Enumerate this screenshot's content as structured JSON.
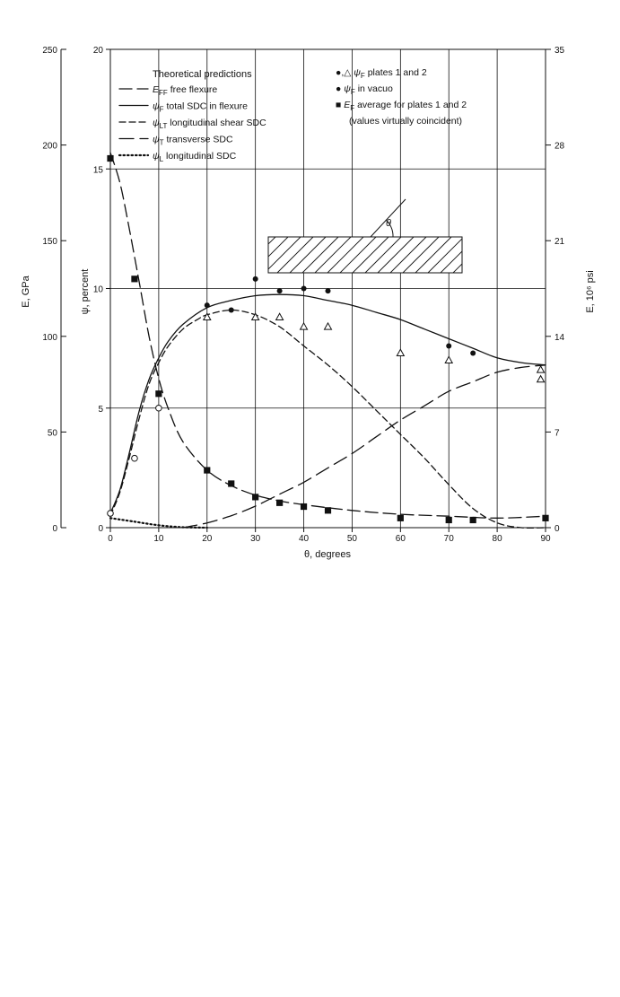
{
  "chart_data": {
    "type": "line",
    "x": {
      "label": "θ, degrees",
      "range": [
        0,
        90
      ],
      "ticks": [
        "0",
        "10",
        "20",
        "30",
        "40",
        "50",
        "60",
        "70",
        "80",
        "90"
      ]
    },
    "y_psi": {
      "label": "ψ, percent",
      "range": [
        0,
        20
      ],
      "ticks": [
        "0",
        "5",
        "10",
        "15",
        "20"
      ]
    },
    "y_E_gpa": {
      "label": "E, GPa",
      "range": [
        0,
        250
      ],
      "ticks": [
        "0",
        "50",
        "100",
        "150",
        "200",
        "250"
      ]
    },
    "y_E_psi": {
      "label": "E, 10⁶ psi",
      "range": [
        0,
        35
      ],
      "ticks": [
        "0",
        "7",
        "14",
        "21",
        "28",
        "35"
      ]
    },
    "grid": true,
    "legend": {
      "heading": "Theoretical predictions",
      "lines": [
        {
          "symbol": "E",
          "sub": "FF",
          "text": "free flexure",
          "style": "long-dash"
        },
        {
          "symbol": "ψ",
          "sub": "F",
          "text": "total SDC in flexure",
          "style": "solid"
        },
        {
          "symbol": "ψ",
          "sub": "LT",
          "text": "longitudinal shear SDC",
          "style": "dash"
        },
        {
          "symbol": "ψ",
          "sub": "T",
          "text": "transverse SDC",
          "style": "long-dash-2"
        },
        {
          "symbol": "ψ",
          "sub": "L",
          "text": "longitudinal SDC",
          "style": "dotted"
        }
      ],
      "markers": [
        {
          "marker": "●,△",
          "symbol": "ψ",
          "sub": "F",
          "text": "plates 1 and 2"
        },
        {
          "marker": "●",
          "symbol": "ψ",
          "sub": "F",
          "text": "in vacuo"
        },
        {
          "marker": "■",
          "symbol": "E",
          "sub": "F",
          "text": "average for plates 1 and 2"
        }
      ],
      "marker_note": "(values virtually coincident)"
    },
    "inset_label": "θ",
    "series": [
      {
        "name": "E_FF free flexure",
        "axis": "E_gpa",
        "style": "long-dash",
        "x": [
          0,
          2,
          4,
          6,
          8,
          10,
          12,
          15,
          20,
          25,
          30,
          35,
          40,
          50,
          60,
          70,
          80,
          90
        ],
        "y": [
          196,
          180,
          155,
          128,
          100,
          78,
          62,
          45,
          30,
          22,
          17,
          14,
          12,
          9,
          7,
          6,
          5,
          6
        ]
      },
      {
        "name": "ψF total SDC in flexure",
        "axis": "psi",
        "style": "solid",
        "x": [
          0,
          2,
          4,
          6,
          8,
          10,
          12,
          15,
          20,
          25,
          30,
          35,
          40,
          45,
          50,
          55,
          60,
          65,
          70,
          75,
          80,
          85,
          90
        ],
        "y": [
          0.6,
          1.6,
          3.2,
          4.9,
          6.2,
          7.1,
          7.8,
          8.5,
          9.2,
          9.5,
          9.7,
          9.75,
          9.7,
          9.5,
          9.3,
          9.0,
          8.7,
          8.3,
          7.9,
          7.5,
          7.1,
          6.9,
          6.8
        ]
      },
      {
        "name": "ψLT longitudinal shear SDC",
        "axis": "psi",
        "style": "dash",
        "x": [
          0,
          2,
          4,
          6,
          8,
          10,
          12,
          15,
          18,
          20,
          25,
          30,
          35,
          40,
          45,
          50,
          55,
          60,
          65,
          70,
          75,
          80,
          85,
          90
        ],
        "y": [
          0.5,
          1.5,
          3.0,
          4.6,
          6.0,
          6.9,
          7.6,
          8.3,
          8.7,
          8.9,
          9.1,
          8.9,
          8.4,
          7.6,
          6.8,
          5.9,
          4.9,
          3.9,
          2.9,
          1.8,
          0.8,
          0.2,
          0.0,
          0.0
        ]
      },
      {
        "name": "ψT transverse SDC",
        "axis": "psi",
        "style": "long-dash-2",
        "x": [
          15,
          20,
          25,
          30,
          35,
          40,
          45,
          50,
          55,
          60,
          65,
          70,
          75,
          80,
          85,
          90
        ],
        "y": [
          0.0,
          0.2,
          0.5,
          0.9,
          1.4,
          1.9,
          2.5,
          3.1,
          3.8,
          4.5,
          5.1,
          5.7,
          6.1,
          6.5,
          6.7,
          6.8
        ]
      },
      {
        "name": "ψL longitudinal SDC",
        "axis": "psi",
        "style": "dotted",
        "x": [
          0,
          5,
          10,
          15,
          20
        ],
        "y": [
          0.4,
          0.25,
          0.1,
          0.02,
          0.0
        ]
      }
    ],
    "points": {
      "psiF_plates_circles": {
        "marker": "filled-circle",
        "axis": "psi",
        "x": [
          20,
          25,
          30,
          35,
          40,
          45,
          70,
          75
        ],
        "y": [
          9.3,
          9.1,
          10.4,
          9.9,
          10.0,
          9.9,
          7.6,
          7.3
        ]
      },
      "psiF_plates_triangles": {
        "marker": "open-triangle",
        "axis": "psi",
        "x": [
          20,
          30,
          35,
          40,
          45,
          60,
          70,
          89,
          89
        ],
        "y": [
          8.8,
          8.8,
          8.8,
          8.4,
          8.4,
          7.3,
          7.0,
          6.6,
          6.2
        ]
      },
      "psiF_vacuo": {
        "marker": "open-circle",
        "axis": "psi",
        "x": [
          0,
          5,
          10
        ],
        "y": [
          0.6,
          2.9,
          5.0
        ]
      },
      "EF_average": {
        "marker": "filled-square",
        "axis": "E_gpa",
        "x": [
          0,
          5,
          10,
          20,
          25,
          30,
          35,
          40,
          45,
          60,
          70,
          75,
          90
        ],
        "y": [
          193,
          130,
          70,
          30,
          23,
          16,
          13,
          11,
          9,
          5,
          4,
          4,
          5
        ]
      }
    }
  }
}
